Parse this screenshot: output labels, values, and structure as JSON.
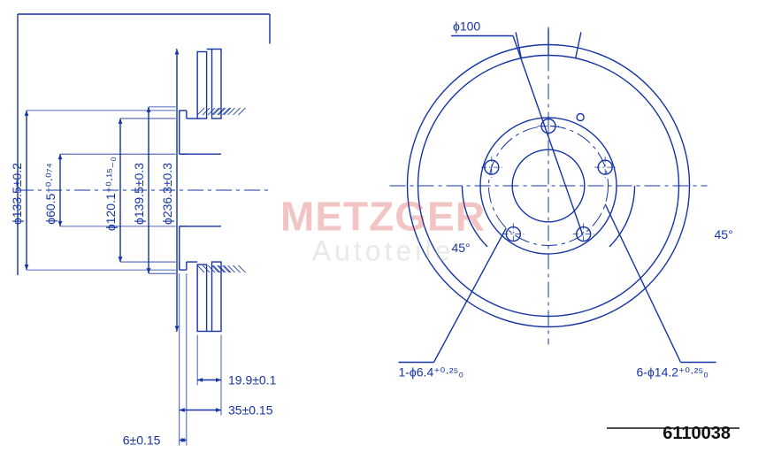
{
  "part_number": "6110038",
  "watermark": {
    "brand": "METZGER",
    "sub": "Autoteile",
    "brand_color": "#d4302a",
    "sub_color": "#b8b2ac"
  },
  "colors": {
    "line": "#1434a4",
    "text": "#1434a4",
    "bg": "#ffffff",
    "partnum": "#111111"
  },
  "stroke_width": 1.4,
  "text_fontsize": 14,
  "left_view": {
    "dims": {
      "outer_dia": "ϕ133.5±0.2",
      "hat_dia": "ϕ60.5⁺⁰·⁰⁷⁴",
      "inner_dia": "ϕ120.1⁺⁰·¹⁵₋₀",
      "bolt_circle_dia": "ϕ139.5±0.3",
      "rotor_dia": "ϕ236.3±0.3",
      "rotor_thk": "19.9±0.1",
      "hat_depth": "35±0.15",
      "base_thk": "6±0.15"
    }
  },
  "front_view": {
    "bolt_pattern_dia": "ϕ100",
    "angle_l": "45°",
    "angle_r": "45°",
    "hole_callout_l": "1-ϕ6.4⁺⁰·²⁵₀",
    "hole_callout_r": "6-ϕ14.2⁺⁰·²⁵₀"
  }
}
